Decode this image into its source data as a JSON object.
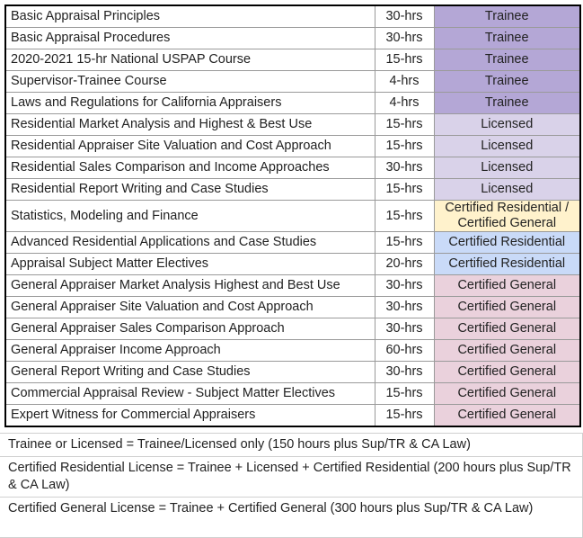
{
  "table": {
    "rows": [
      {
        "course": "Basic Appraisal Principles",
        "hours": "30-hrs",
        "level": "Trainee",
        "color": "#b4a7d6"
      },
      {
        "course": "Basic Appraisal Procedures",
        "hours": "30-hrs",
        "level": "Trainee",
        "color": "#b4a7d6"
      },
      {
        "course": "2020-2021 15-hr National USPAP Course",
        "hours": "15-hrs",
        "level": "Trainee",
        "color": "#b4a7d6"
      },
      {
        "course": "Supervisor-Trainee Course",
        "hours": "4-hrs",
        "level": "Trainee",
        "color": "#b4a7d6"
      },
      {
        "course": "Laws and Regulations for California Appraisers",
        "hours": "4-hrs",
        "level": "Trainee",
        "color": "#b4a7d6"
      },
      {
        "course": "Residential Market Analysis and Highest & Best Use",
        "hours": "15-hrs",
        "level": "Licensed",
        "color": "#d9d2e9"
      },
      {
        "course": "Residential Appraiser Site Valuation and Cost Approach",
        "hours": "15-hrs",
        "level": "Licensed",
        "color": "#d9d2e9"
      },
      {
        "course": "Residential Sales Comparison and Income Approaches",
        "hours": "30-hrs",
        "level": "Licensed",
        "color": "#d9d2e9"
      },
      {
        "course": "Residential Report Writing and Case Studies",
        "hours": "15-hrs",
        "level": "Licensed",
        "color": "#d9d2e9"
      },
      {
        "course": "Statistics, Modeling and Finance",
        "hours": "15-hrs",
        "level": "Certified Residential / Certified General",
        "color": "#fff2cc"
      },
      {
        "course": "Advanced Residential Applications and Case Studies",
        "hours": "15-hrs",
        "level": "Certified Residential",
        "color": "#c9daf8"
      },
      {
        "course": "Appraisal Subject Matter Electives",
        "hours": "20-hrs",
        "level": "Certified Residential",
        "color": "#c9daf8"
      },
      {
        "course": "General Appraiser Market Analysis Highest and Best Use",
        "hours": "30-hrs",
        "level": "Certified General",
        "color": "#ead1dc"
      },
      {
        "course": "General Appraiser Site Valuation and Cost Approach",
        "hours": "30-hrs",
        "level": "Certified General",
        "color": "#ead1dc"
      },
      {
        "course": "General Appraiser Sales Comparison Approach",
        "hours": "30-hrs",
        "level": "Certified General",
        "color": "#ead1dc"
      },
      {
        "course": "General Appraiser Income Approach",
        "hours": "60-hrs",
        "level": "Certified General",
        "color": "#ead1dc"
      },
      {
        "course": "General Report Writing and Case Studies",
        "hours": "30-hrs",
        "level": "Certified General",
        "color": "#ead1dc"
      },
      {
        "course": "Commercial Appraisal Review - Subject Matter Electives",
        "hours": "15-hrs",
        "level": "Certified General",
        "color": "#ead1dc"
      },
      {
        "course": "Expert Witness for Commercial Appraisers",
        "hours": "15-hrs",
        "level": "Certified General",
        "color": "#ead1dc"
      }
    ]
  },
  "notes": [
    "Trainee or Licensed = Trainee/Licensed only (150 hours plus Sup/TR & CA Law)",
    "Certified Residential License = Trainee + Licensed + Certified Residential (200 hours plus Sup/TR & CA Law)",
    "Certified General License = Trainee + Certified General (300 hours plus Sup/TR & CA Law)"
  ]
}
